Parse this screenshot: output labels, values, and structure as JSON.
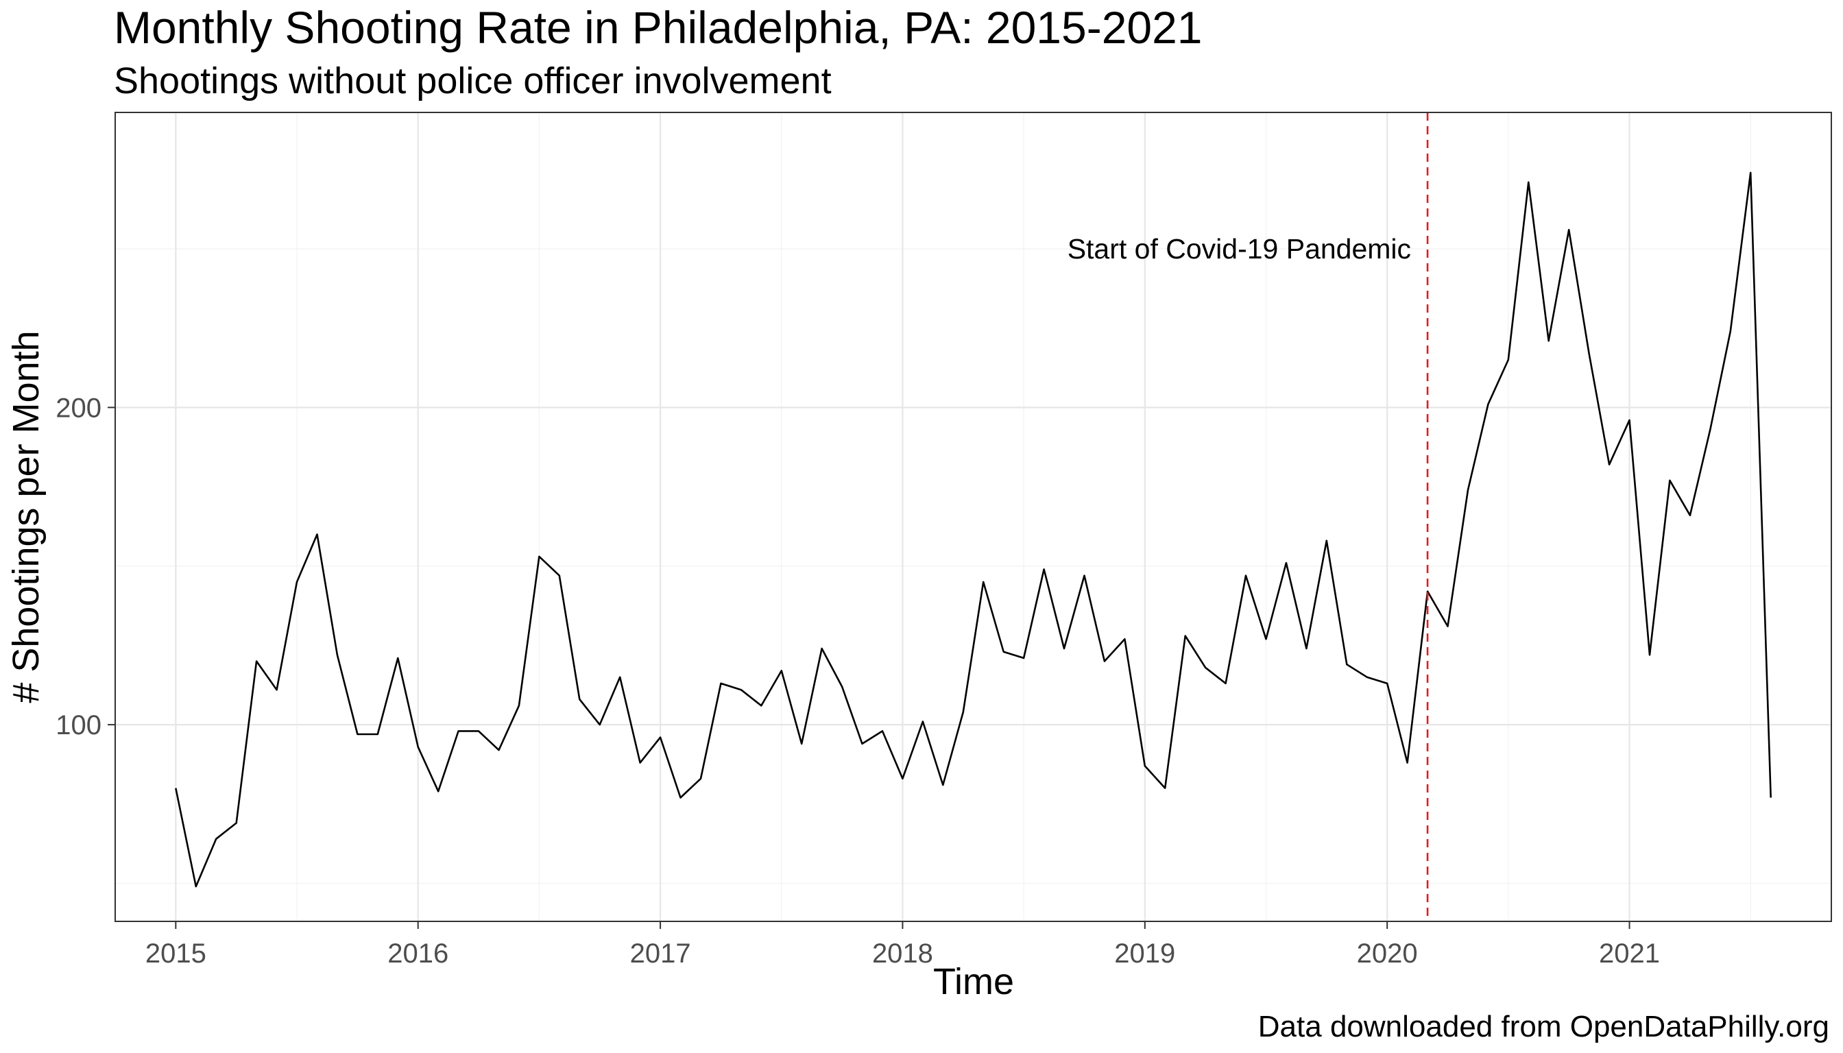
{
  "chart_data": {
    "type": "line",
    "title": "Monthly Shooting Rate in Philadelphia, PA: 2015-2021",
    "subtitle": "Shootings without police officer involvement",
    "xlabel": "Time",
    "ylabel": "# Shootings per Month",
    "caption": "Data downloaded from OpenDataPhilly.org",
    "x_start": "2015-01",
    "x_end": "2021-08",
    "xlim": [
      "2014-10",
      "2021-11"
    ],
    "ylim": [
      38,
      293
    ],
    "x_ticks": [
      "2015",
      "2016",
      "2017",
      "2018",
      "2019",
      "2020",
      "2021"
    ],
    "y_ticks": [
      100,
      200
    ],
    "grid": true,
    "series": [
      {
        "color": "#000000",
        "values": [
          80,
          49,
          64,
          69,
          120,
          111,
          145,
          160,
          122,
          97,
          97,
          121,
          93,
          79,
          98,
          98,
          92,
          106,
          153,
          147,
          108,
          100,
          115,
          88,
          96,
          77,
          83,
          113,
          111,
          106,
          117,
          94,
          124,
          112,
          94,
          98,
          83,
          101,
          81,
          104,
          145,
          123,
          121,
          149,
          124,
          147,
          120,
          127,
          87,
          80,
          128,
          118,
          113,
          147,
          127,
          151,
          124,
          158,
          119,
          115,
          113,
          88,
          142,
          131,
          174,
          201,
          215,
          271,
          221,
          256,
          217,
          182,
          196,
          122,
          177,
          166,
          193,
          224,
          274,
          77
        ]
      }
    ],
    "annotations": [
      {
        "x": "2020-03",
        "type": "vline",
        "style": "dashed",
        "color": "#e31a1c",
        "label": "Start of Covid-19 Pandemic"
      }
    ]
  }
}
